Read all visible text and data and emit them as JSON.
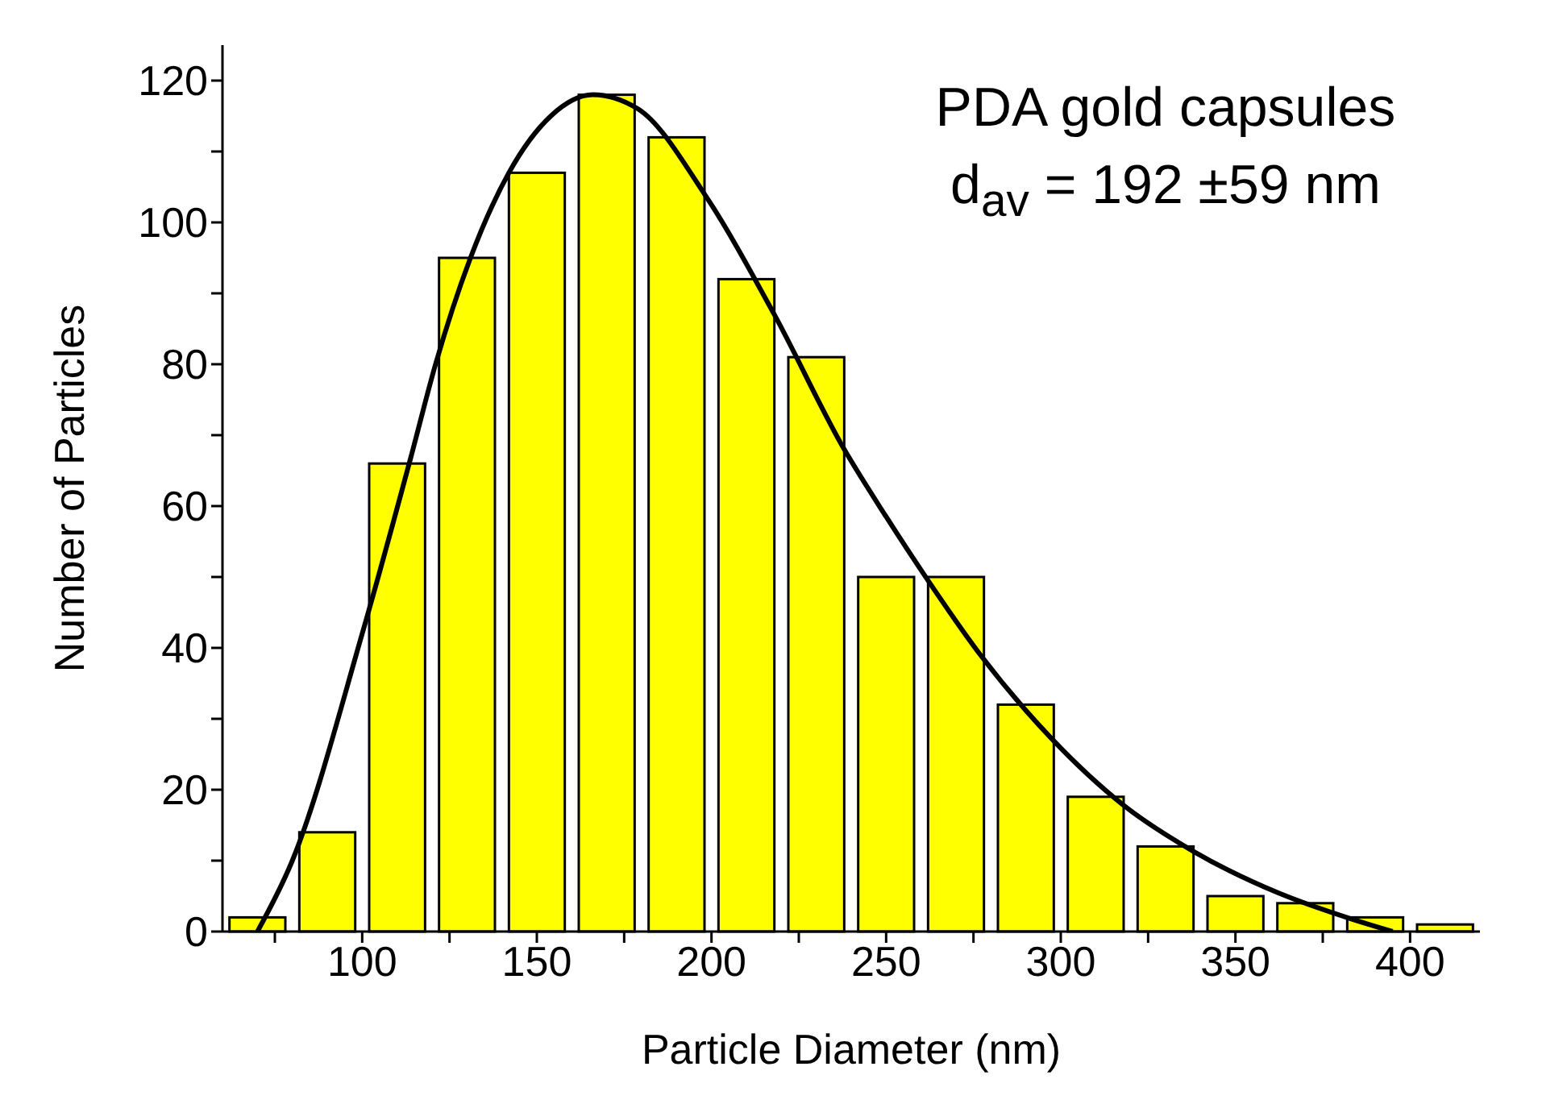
{
  "chart_data": {
    "type": "histogram",
    "xlabel": "Particle Diameter (nm)",
    "ylabel": "Number of Particles",
    "annotations": [
      "PDA gold capsules",
      "d$_{av}$ = 192 ±59 nm"
    ],
    "xlim": [
      60,
      420
    ],
    "xticks": [
      {
        "value": 75,
        "label": null
      },
      100,
      {
        "value": 125,
        "label": null
      },
      150,
      {
        "value": 175,
        "label": null
      },
      200,
      {
        "value": 225,
        "label": null
      },
      250,
      {
        "value": 275,
        "label": null
      },
      300,
      {
        "value": 325,
        "label": null
      },
      350,
      {
        "value": 375,
        "label": null
      },
      400
    ],
    "ylim": [
      0,
      125
    ],
    "yticks": [
      0,
      {
        "value": 10,
        "label": null
      },
      20,
      {
        "value": 30,
        "label": null
      },
      40,
      {
        "value": 50,
        "label": null
      },
      60,
      {
        "value": 70,
        "label": null
      },
      80,
      {
        "value": 90,
        "label": null
      },
      100,
      {
        "value": 110,
        "label": null
      },
      120
    ],
    "grid": false,
    "series": [
      {
        "color": "#ffff00",
        "bins": [
          60,
          80,
          100,
          120,
          140,
          160,
          180,
          200,
          220,
          240,
          260,
          280,
          300,
          320,
          340,
          360,
          380,
          400,
          420
        ],
        "values": [
          2,
          14,
          66,
          95,
          107,
          118,
          112,
          92,
          81,
          50,
          50,
          32,
          19,
          12,
          5,
          4,
          2,
          1
        ]
      },
      {
        "type": "line",
        "color": "#000000",
        "x": [
          70,
          80,
          100,
          114,
          121,
          131,
          142,
          154,
          166,
          179,
          198,
          218,
          238,
          250,
          262,
          277,
          297,
          318,
          338,
          362,
          383,
          395
        ],
        "values": [
          0,
          10,
          42,
          67,
          80,
          95,
          107,
          115,
          118,
          116,
          104,
          87,
          68,
          58.5,
          49.5,
          39,
          27.4,
          17.8,
          11.3,
          5.5,
          1.8,
          0
        ]
      }
    ]
  }
}
